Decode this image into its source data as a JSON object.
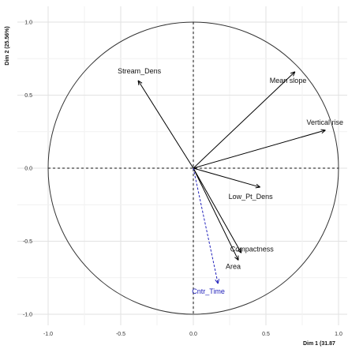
{
  "chart_data": {
    "type": "scatter",
    "subtype": "pca-variable-correlation-circle",
    "xlabel": "Dim 1 (31.87",
    "ylabel": "Dim 2 (25.56%)",
    "xlim": [
      -1.0,
      1.0
    ],
    "ylim": [
      -1.0,
      1.0
    ],
    "x_ticks": [
      "-1.0",
      "-0.5",
      "0.0",
      "0.5",
      "1.0"
    ],
    "y_ticks": [
      "1.0",
      "0.5",
      "0.0",
      "-0.5",
      "-1.0"
    ],
    "grid": true,
    "unit_circle": true,
    "series": [
      {
        "role": "active",
        "color": "#000000",
        "points": [
          {
            "label": "Stream_Dens",
            "x": -0.38,
            "y": 0.6
          },
          {
            "label": "Mean slope",
            "x": 0.7,
            "y": 0.66
          },
          {
            "label": "Vertical rise",
            "x": 0.91,
            "y": 0.26
          },
          {
            "label": "Low_Pt_Dens",
            "x": 0.46,
            "y": -0.13
          },
          {
            "label": "Compactness",
            "x": 0.33,
            "y": -0.58
          },
          {
            "label": "Area",
            "x": 0.31,
            "y": -0.63
          }
        ]
      },
      {
        "role": "supplementary",
        "color": "#2222bb",
        "points": [
          {
            "label": "Cntr_Time",
            "x": 0.17,
            "y": -0.79
          }
        ]
      }
    ]
  }
}
